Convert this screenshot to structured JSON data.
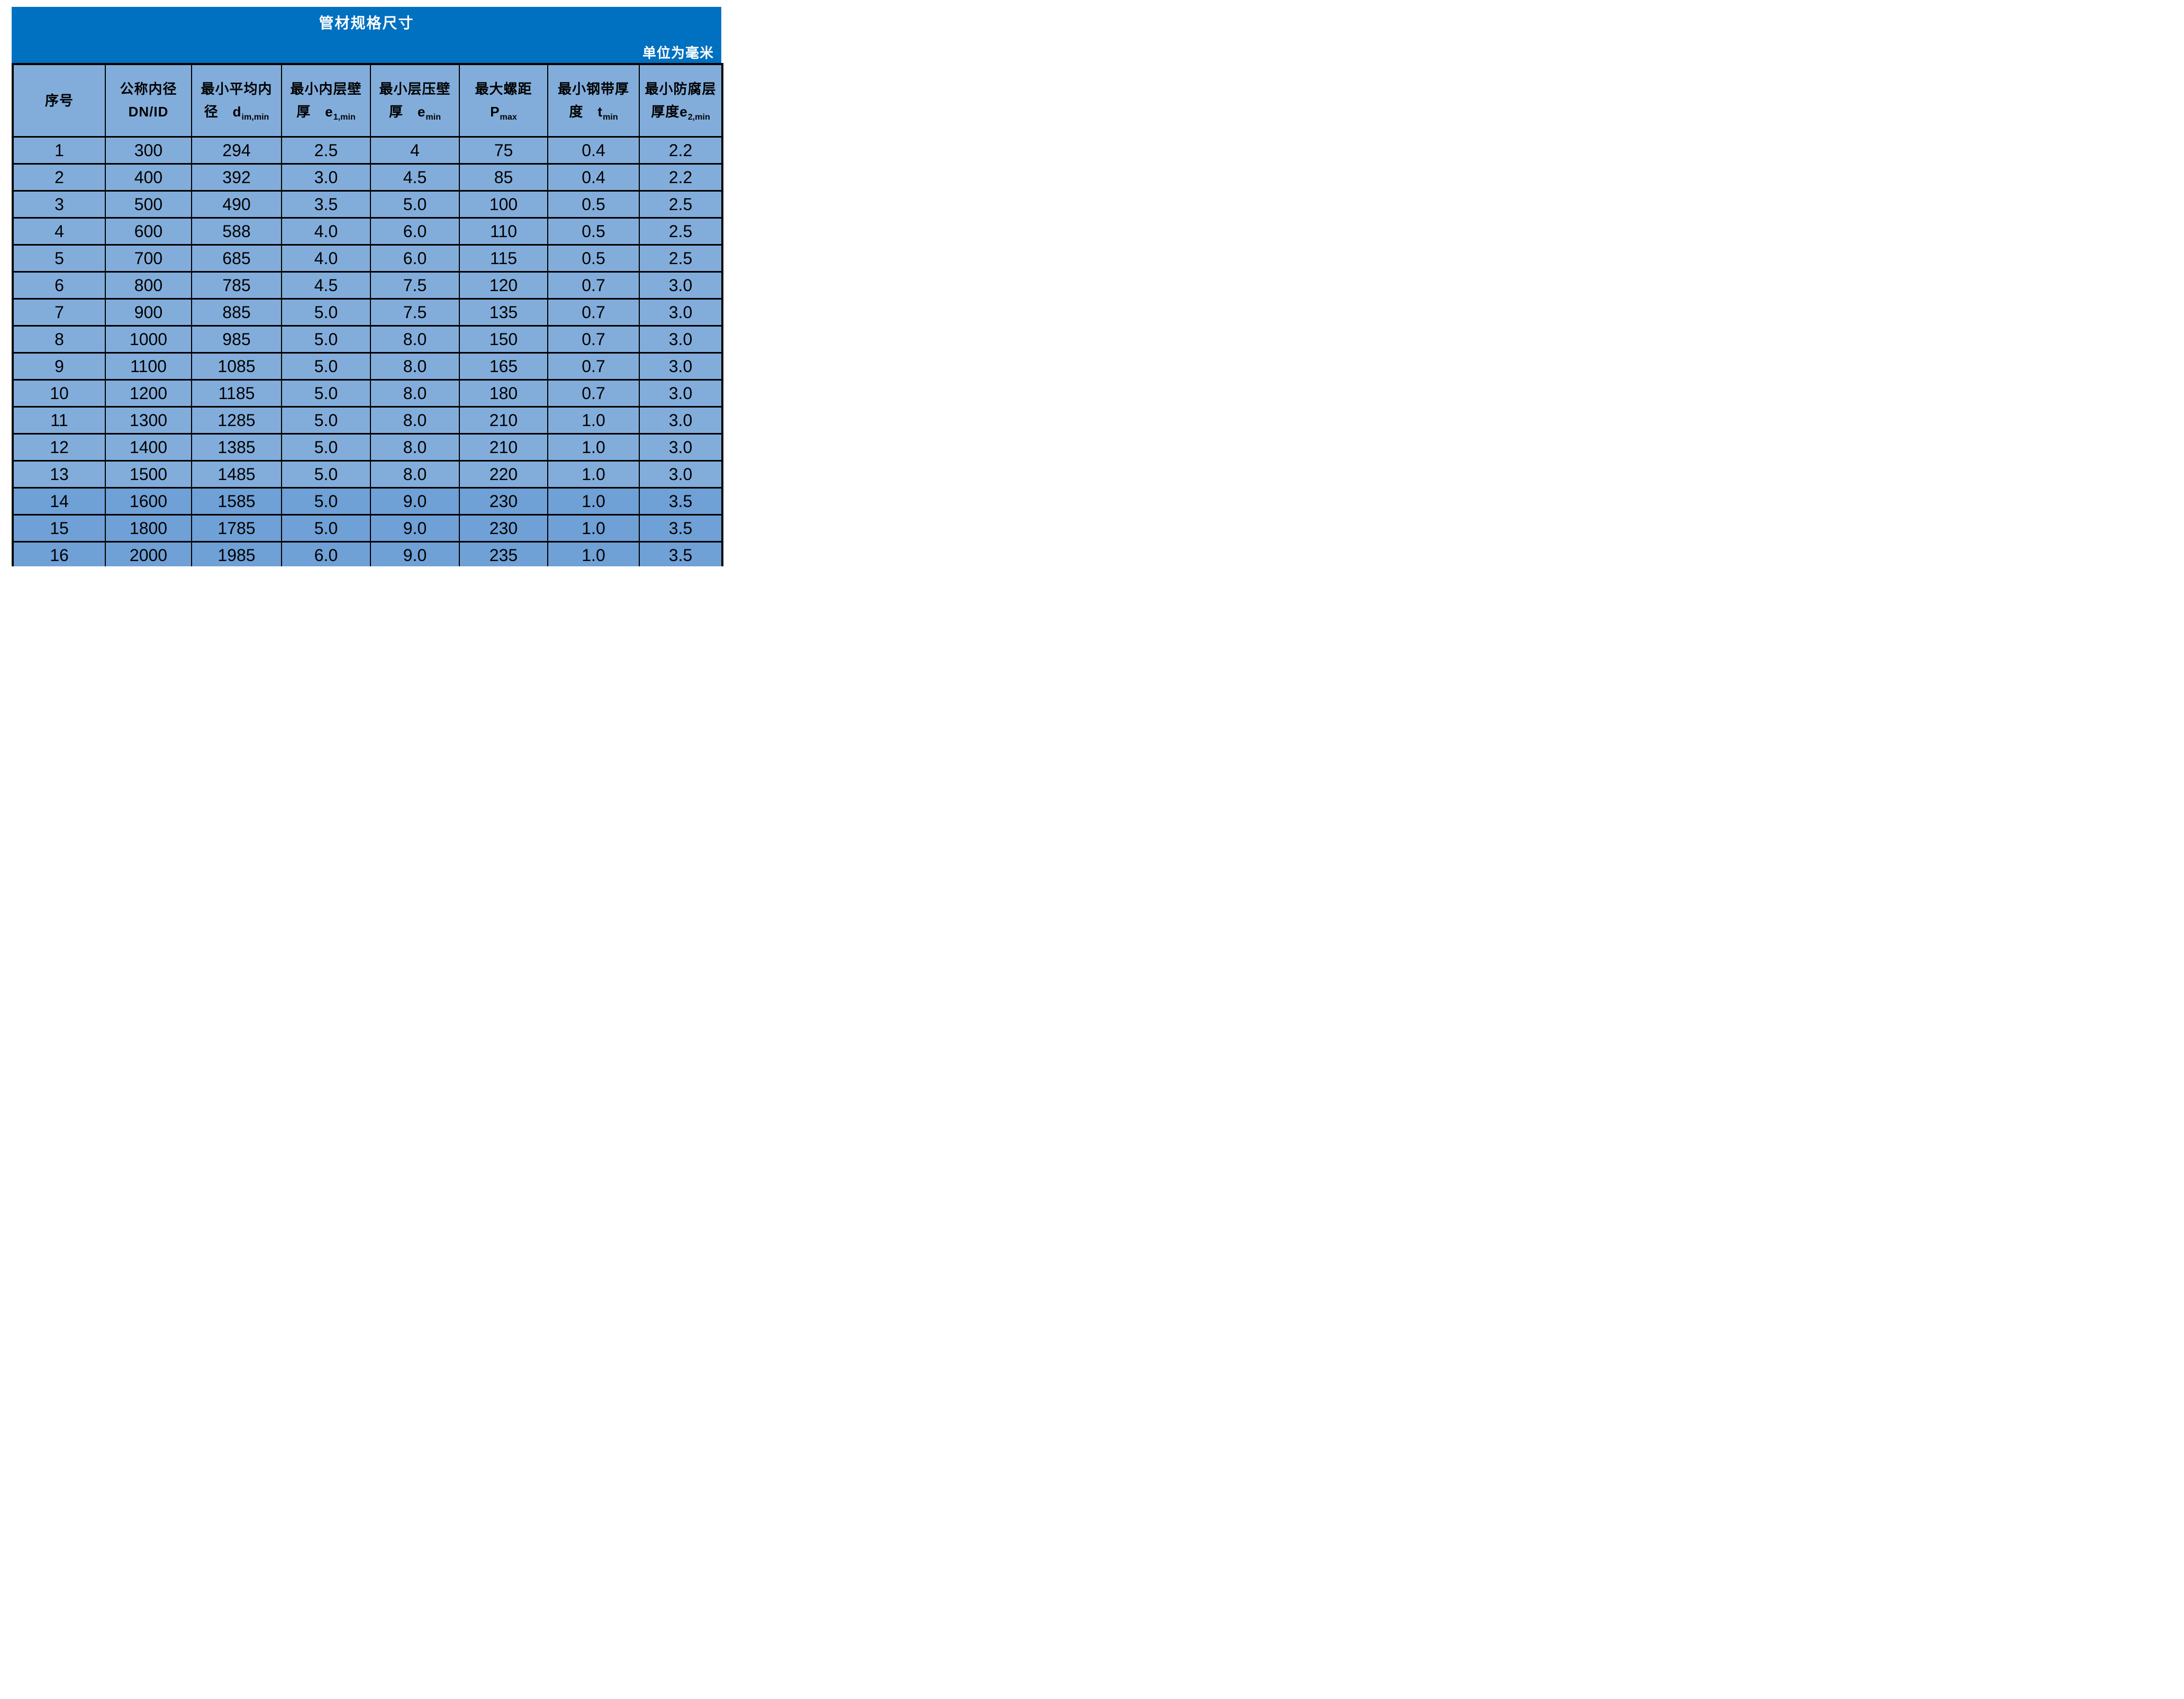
{
  "title": "管材规格尺寸",
  "unit_note": "单位为毫米",
  "colors": {
    "header_band": "#0070C0",
    "band_text": "#FFFFFF",
    "cell_bg": "#82ADDB",
    "cell_bg_dark": "#6FA0D6",
    "border": "#000000",
    "cell_text": "#000000"
  },
  "table": {
    "columns": [
      {
        "line1": "序号",
        "line2": "",
        "symbol": "",
        "sub": ""
      },
      {
        "line1": "公称内径",
        "line2": "",
        "symbol": "DN/ID",
        "sub": ""
      },
      {
        "line1": "最小平均内",
        "line2": "径　",
        "symbol": "d",
        "sub": "im,min"
      },
      {
        "line1": "最小内层壁",
        "line2": "厚　",
        "symbol": "e",
        "sub": "1,min"
      },
      {
        "line1": "最小层压壁",
        "line2": "厚　",
        "symbol": "e",
        "sub": "min"
      },
      {
        "line1": "最大螺距",
        "line2": "",
        "symbol": "P",
        "sub": "max"
      },
      {
        "line1": "最小钢带厚",
        "line2": "度　",
        "symbol": "t",
        "sub": "min"
      },
      {
        "line1": "最小防腐层",
        "line2": "厚度",
        "symbol": "e",
        "sub": "2,min"
      }
    ],
    "rows": [
      [
        "1",
        "300",
        "294",
        "2.5",
        "4",
        "75",
        "0.4",
        "2.2"
      ],
      [
        "2",
        "400",
        "392",
        "3.0",
        "4.5",
        "85",
        "0.4",
        "2.2"
      ],
      [
        "3",
        "500",
        "490",
        "3.5",
        "5.0",
        "100",
        "0.5",
        "2.5"
      ],
      [
        "4",
        "600",
        "588",
        "4.0",
        "6.0",
        "110",
        "0.5",
        "2.5"
      ],
      [
        "5",
        "700",
        "685",
        "4.0",
        "6.0",
        "115",
        "0.5",
        "2.5"
      ],
      [
        "6",
        "800",
        "785",
        "4.5",
        "7.5",
        "120",
        "0.7",
        "3.0"
      ],
      [
        "7",
        "900",
        "885",
        "5.0",
        "7.5",
        "135",
        "0.7",
        "3.0"
      ],
      [
        "8",
        "1000",
        "985",
        "5.0",
        "8.0",
        "150",
        "0.7",
        "3.0"
      ],
      [
        "9",
        "1100",
        "1085",
        "5.0",
        "8.0",
        "165",
        "0.7",
        "3.0"
      ],
      [
        "10",
        "1200",
        "1185",
        "5.0",
        "8.0",
        "180",
        "0.7",
        "3.0"
      ],
      [
        "11",
        "1300",
        "1285",
        "5.0",
        "8.0",
        "210",
        "1.0",
        "3.0"
      ],
      [
        "12",
        "1400",
        "1385",
        "5.0",
        "8.0",
        "210",
        "1.0",
        "3.0"
      ],
      [
        "13",
        "1500",
        "1485",
        "5.0",
        "8.0",
        "220",
        "1.0",
        "3.0"
      ],
      [
        "14",
        "1600",
        "1585",
        "5.0",
        "9.0",
        "230",
        "1.0",
        "3.5"
      ],
      [
        "15",
        "1800",
        "1785",
        "5.0",
        "9.0",
        "230",
        "1.0",
        "3.5"
      ],
      [
        "16",
        "2000",
        "1985",
        "6.0",
        "9.0",
        "235",
        "1.0",
        "3.5"
      ]
    ],
    "dark_rows": [
      14,
      15,
      16
    ]
  },
  "chart_data": {
    "type": "table",
    "title": "管材规格尺寸",
    "unit": "mm",
    "columns": [
      "序号",
      "公称内径 DN/ID",
      "最小平均内径 d_im,min",
      "最小内层壁厚 e_1,min",
      "最小层压壁厚 e_min",
      "最大螺距 P_max",
      "最小钢带厚度 t_min",
      "最小防腐层厚度 e_2,min"
    ],
    "rows": [
      [
        1,
        300,
        294,
        2.5,
        4,
        75,
        0.4,
        2.2
      ],
      [
        2,
        400,
        392,
        3.0,
        4.5,
        85,
        0.4,
        2.2
      ],
      [
        3,
        500,
        490,
        3.5,
        5.0,
        100,
        0.5,
        2.5
      ],
      [
        4,
        600,
        588,
        4.0,
        6.0,
        110,
        0.5,
        2.5
      ],
      [
        5,
        700,
        685,
        4.0,
        6.0,
        115,
        0.5,
        2.5
      ],
      [
        6,
        800,
        785,
        4.5,
        7.5,
        120,
        0.7,
        3.0
      ],
      [
        7,
        900,
        885,
        5.0,
        7.5,
        135,
        0.7,
        3.0
      ],
      [
        8,
        1000,
        985,
        5.0,
        8.0,
        150,
        0.7,
        3.0
      ],
      [
        9,
        1100,
        1085,
        5.0,
        8.0,
        165,
        0.7,
        3.0
      ],
      [
        10,
        1200,
        1185,
        5.0,
        8.0,
        180,
        0.7,
        3.0
      ],
      [
        11,
        1300,
        1285,
        5.0,
        8.0,
        210,
        1.0,
        3.0
      ],
      [
        12,
        1400,
        1385,
        5.0,
        8.0,
        210,
        1.0,
        3.0
      ],
      [
        13,
        1500,
        1485,
        5.0,
        8.0,
        220,
        1.0,
        3.0
      ],
      [
        14,
        1600,
        1585,
        5.0,
        9.0,
        230,
        1.0,
        3.5
      ],
      [
        15,
        1800,
        1785,
        5.0,
        9.0,
        230,
        1.0,
        3.5
      ],
      [
        16,
        2000,
        1985,
        6.0,
        9.0,
        235,
        1.0,
        3.5
      ]
    ]
  }
}
